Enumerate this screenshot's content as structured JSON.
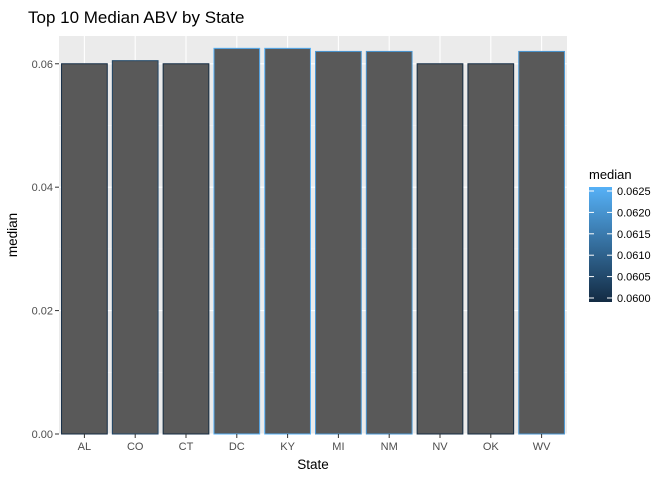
{
  "chart_data": {
    "type": "bar",
    "title": "Top 10 Median ABV by State",
    "xlabel": "State",
    "ylabel": "median",
    "categories": [
      "AL",
      "CO",
      "CT",
      "DC",
      "KY",
      "MI",
      "NM",
      "NV",
      "OK",
      "WV"
    ],
    "values": [
      0.06,
      0.0605,
      0.06,
      0.0625,
      0.0625,
      0.062,
      0.062,
      0.06,
      0.06,
      0.062
    ],
    "ylim": [
      0,
      0.0645
    ],
    "yticks": [
      "0.00",
      "0.02",
      "0.04",
      "0.06"
    ],
    "ytick_values": [
      0,
      0.02,
      0.04,
      0.06
    ],
    "grid": true,
    "bar_fill": "#595959",
    "panel_background": "#ebebeb",
    "legend": {
      "title": "median",
      "position": "right",
      "type": "colorbar",
      "labels": [
        "0.0625",
        "0.0620",
        "0.0615",
        "0.0610",
        "0.0605",
        "0.0600"
      ],
      "values": [
        0.0625,
        0.062,
        0.0615,
        0.061,
        0.0605,
        0.06
      ],
      "range": [
        0.06,
        0.0625
      ],
      "color_low": "#132b43",
      "color_high": "#56b1f7"
    }
  }
}
